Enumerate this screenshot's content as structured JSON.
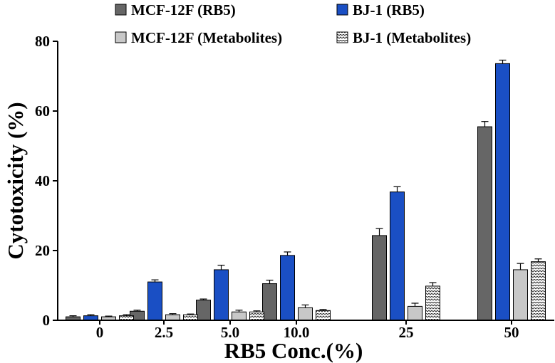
{
  "chart_data": {
    "type": "bar",
    "categories": [
      "0",
      "2.5",
      "5.0",
      "10.0",
      "25",
      "50"
    ],
    "series": [
      {
        "name": "MCF-12F (RB5)",
        "values": [
          1.0,
          2.6,
          5.8,
          10.5,
          24.3,
          55.5
        ],
        "errors": [
          0.3,
          0.3,
          0.3,
          1.0,
          2.0,
          1.5
        ],
        "color": "#666666",
        "pattern": "solid"
      },
      {
        "name": "BJ-1 (RB5)",
        "values": [
          1.3,
          11.0,
          14.5,
          18.6,
          36.8,
          73.6
        ],
        "errors": [
          0.3,
          0.6,
          1.3,
          1.0,
          1.5,
          1.0
        ],
        "color": "#1a4fc4",
        "pattern": "solid"
      },
      {
        "name": "MCF-12F (Metabolites)",
        "values": [
          1.0,
          1.6,
          2.4,
          3.6,
          4.0,
          14.5
        ],
        "errors": [
          0.2,
          0.3,
          0.5,
          0.8,
          0.9,
          1.8
        ],
        "color": "#c8c8c8",
        "pattern": "solid"
      },
      {
        "name": "BJ-1 (Metabolites)",
        "values": [
          1.3,
          1.6,
          2.4,
          2.8,
          9.8,
          16.8
        ],
        "errors": [
          0.3,
          0.2,
          0.3,
          0.3,
          1.0,
          0.8
        ],
        "color": "#ffffff",
        "pattern": "zigzag"
      }
    ],
    "xlabel": "RB5 Conc.(%)",
    "ylabel": "Cytotoxicity (%)",
    "ylim": [
      0,
      80
    ],
    "yticks": [
      0,
      20,
      40,
      60,
      80
    ],
    "grid": false,
    "legend_position": "top"
  }
}
